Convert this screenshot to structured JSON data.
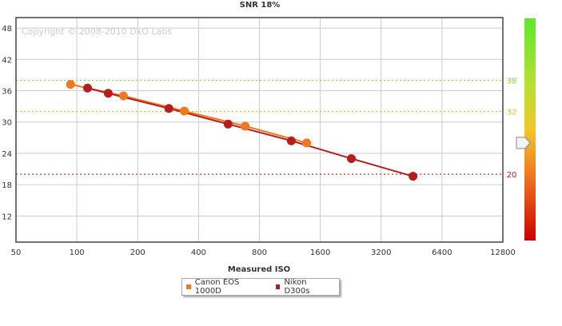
{
  "chart_data": {
    "type": "line",
    "title": "SNR 18%",
    "xlabel": "Measured ISO",
    "ylabel": "",
    "watermark": "Copyright © 2008-2010 DxO Labs",
    "x_scale": "log2",
    "xlim": [
      50,
      12800
    ],
    "ylim": [
      7,
      50
    ],
    "x_ticks": [
      "50",
      "100",
      "200",
      "400",
      "800",
      "1600",
      "3200",
      "6400",
      "12800"
    ],
    "x_tick_values": [
      50,
      100,
      200,
      400,
      800,
      1600,
      3200,
      6400,
      12800
    ],
    "y_ticks": [
      "12",
      "18",
      "24",
      "30",
      "36",
      "42",
      "48"
    ],
    "y_tick_values": [
      12,
      18,
      24,
      30,
      36,
      42,
      48
    ],
    "grid": true,
    "legend_position": "bottom-center",
    "series": [
      {
        "name": "Canon EOS 1000D",
        "color": "#f07820",
        "points": [
          [
            93,
            37.2
          ],
          [
            170,
            35.0
          ],
          [
            340,
            32.1
          ],
          [
            680,
            29.2
          ],
          [
            1370,
            26.0
          ]
        ]
      },
      {
        "name": "Nikon D300s",
        "color": "#b81c1c",
        "points": [
          [
            113,
            36.5
          ],
          [
            143,
            35.5
          ],
          [
            285,
            32.6
          ],
          [
            560,
            29.6
          ],
          [
            1150,
            26.4
          ],
          [
            2280,
            23.0
          ],
          [
            4600,
            19.6
          ]
        ]
      }
    ],
    "reference_lines": [
      {
        "value": 38,
        "label": "38",
        "color": "#7fdc3a"
      },
      {
        "value": 32,
        "label": "32",
        "color": "#f0b830"
      },
      {
        "value": 20,
        "label": "20",
        "color": "#d01818"
      }
    ],
    "color_scale": {
      "stops": [
        "#5ee82e",
        "#f0d020",
        "#f07a20",
        "#cc0000"
      ],
      "marker_value": 26
    }
  }
}
